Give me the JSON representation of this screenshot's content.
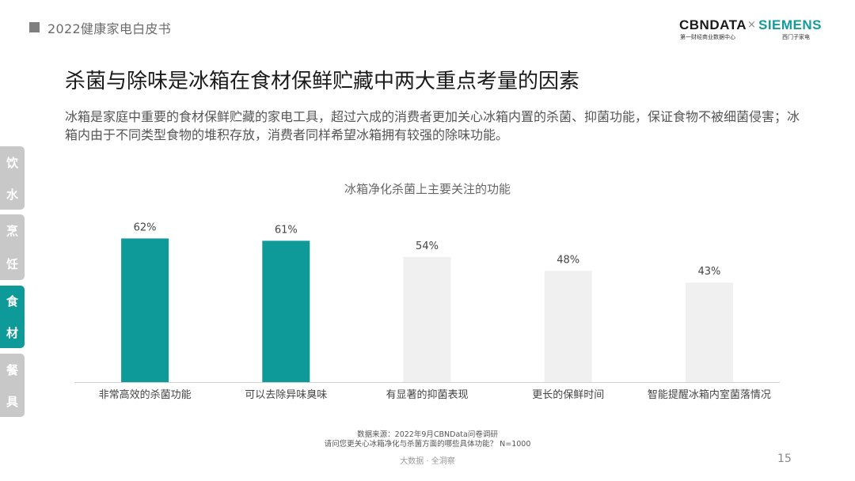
{
  "header": {
    "title": "2022健康家电白皮书"
  },
  "logo": {
    "cbn": "CBNDATA",
    "cbn_sub": "第一财经商业数据中心",
    "times": "×",
    "siemens": "SIEMENS",
    "siemens_sub": "西门子家电"
  },
  "main_title": "杀菌与除味是冰箱在食材保鲜贮藏中两大重点考量的因素",
  "description": "冰箱是家庭中重要的食材保鲜贮藏的家电工具，超过六成的消费者更加关心冰箱内置的杀菌、抑菌功能，保证食物不被细菌侵害；冰箱内由于不同类型食物的堆积存放，消费者同样希望冰箱拥有较强的除味功能。",
  "side_tabs": [
    {
      "chars": [
        "饮",
        "水"
      ],
      "active": false
    },
    {
      "chars": [
        "烹",
        "饪"
      ],
      "active": false
    },
    {
      "chars": [
        "食",
        "材"
      ],
      "active": true
    },
    {
      "chars": [
        "餐",
        "具"
      ],
      "active": false
    }
  ],
  "chart_data": {
    "type": "bar",
    "title": "冰箱净化杀菌上主要关注的功能",
    "categories": [
      "非常高效的杀菌功能",
      "可以去除异味臭味",
      "有显著的抑菌表现",
      "更长的保鲜时间",
      "智能提醒冰箱内室菌落情况"
    ],
    "values": [
      62,
      61,
      54,
      48,
      43
    ],
    "value_labels": [
      "62%",
      "61%",
      "54%",
      "48%",
      "43%"
    ],
    "highlight": [
      true,
      true,
      false,
      false,
      false
    ],
    "colors": {
      "highlight": "#0f9a9a",
      "normal": "#f0f0f0",
      "axis": "#d0d0d0"
    },
    "ylim": [
      0,
      70
    ],
    "grid": false,
    "legend": "none"
  },
  "source": {
    "line1": "数据来源：2022年9月CBNData问卷调研",
    "line2": "请问您更关心冰箱净化与杀菌方面的哪些具体功能？ N=1000"
  },
  "footer": {
    "center": "大数据 · 全洞察",
    "page": "15"
  }
}
